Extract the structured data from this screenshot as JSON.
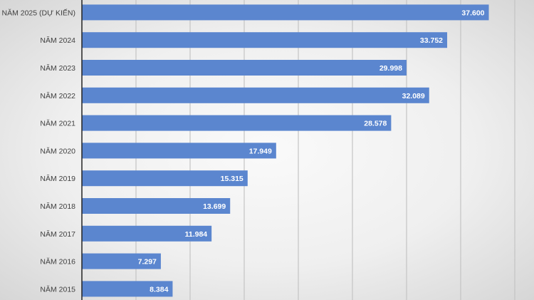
{
  "chart_data": {
    "type": "bar",
    "orientation": "horizontal",
    "categories": [
      "NĂM 2025 (DỰ KIẾN)",
      "NĂM 2024",
      "NĂM 2023",
      "NĂM 2022",
      "NĂM 2021",
      "NĂM 2020",
      "NĂM 2019",
      "NĂM 2018",
      "NĂM 2017",
      "NĂM 2016",
      "NĂM 2015"
    ],
    "values": [
      37600,
      33752,
      29998,
      32089,
      28578,
      17949,
      15315,
      13699,
      11984,
      7297,
      8384
    ],
    "value_labels": [
      "37.600",
      "33.752",
      "29.998",
      "32.089",
      "28.578",
      "17.949",
      "15.315",
      "13.699",
      "11.984",
      "7.297",
      "8.384"
    ],
    "xlim": [
      0,
      40000
    ],
    "grid_step": 5000,
    "grid": true,
    "bar_color": "#5b86cf"
  }
}
